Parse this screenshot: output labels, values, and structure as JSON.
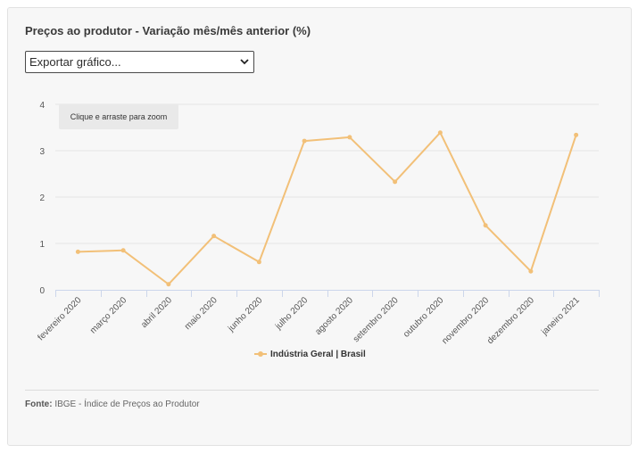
{
  "title": "Preços ao produtor - Variação mês/mês anterior (%)",
  "export_select": {
    "value": "Exportar gráfico..."
  },
  "zoom_hint": "Clique e arraste para zoom",
  "source": {
    "label": "Fonte:",
    "text": "IBGE - Índice de Preços ao Produtor"
  },
  "colors": {
    "series": "#f2c078",
    "grid": "#e6e6e6",
    "axis": "#ccd6eb"
  },
  "chart_data": {
    "type": "line",
    "title": "Preços ao produtor - Variação mês/mês anterior (%)",
    "categories": [
      "fevereiro 2020",
      "março 2020",
      "abril 2020",
      "maio 2020",
      "junho 2020",
      "julho 2020",
      "agosto 2020",
      "setembro 2020",
      "outubro 2020",
      "novembro 2020",
      "dezembro 2020",
      "janeiro 2021"
    ],
    "series": [
      {
        "name": "Indústria Geral | Brasil",
        "values": [
          0.82,
          0.85,
          0.12,
          1.16,
          0.6,
          3.21,
          3.29,
          2.33,
          3.39,
          1.39,
          0.4,
          3.34
        ]
      }
    ],
    "ylim": [
      0,
      4
    ],
    "yticks": [
      "0",
      "1",
      "2",
      "3",
      "4"
    ],
    "grid": true,
    "legend": "bottom-center"
  }
}
